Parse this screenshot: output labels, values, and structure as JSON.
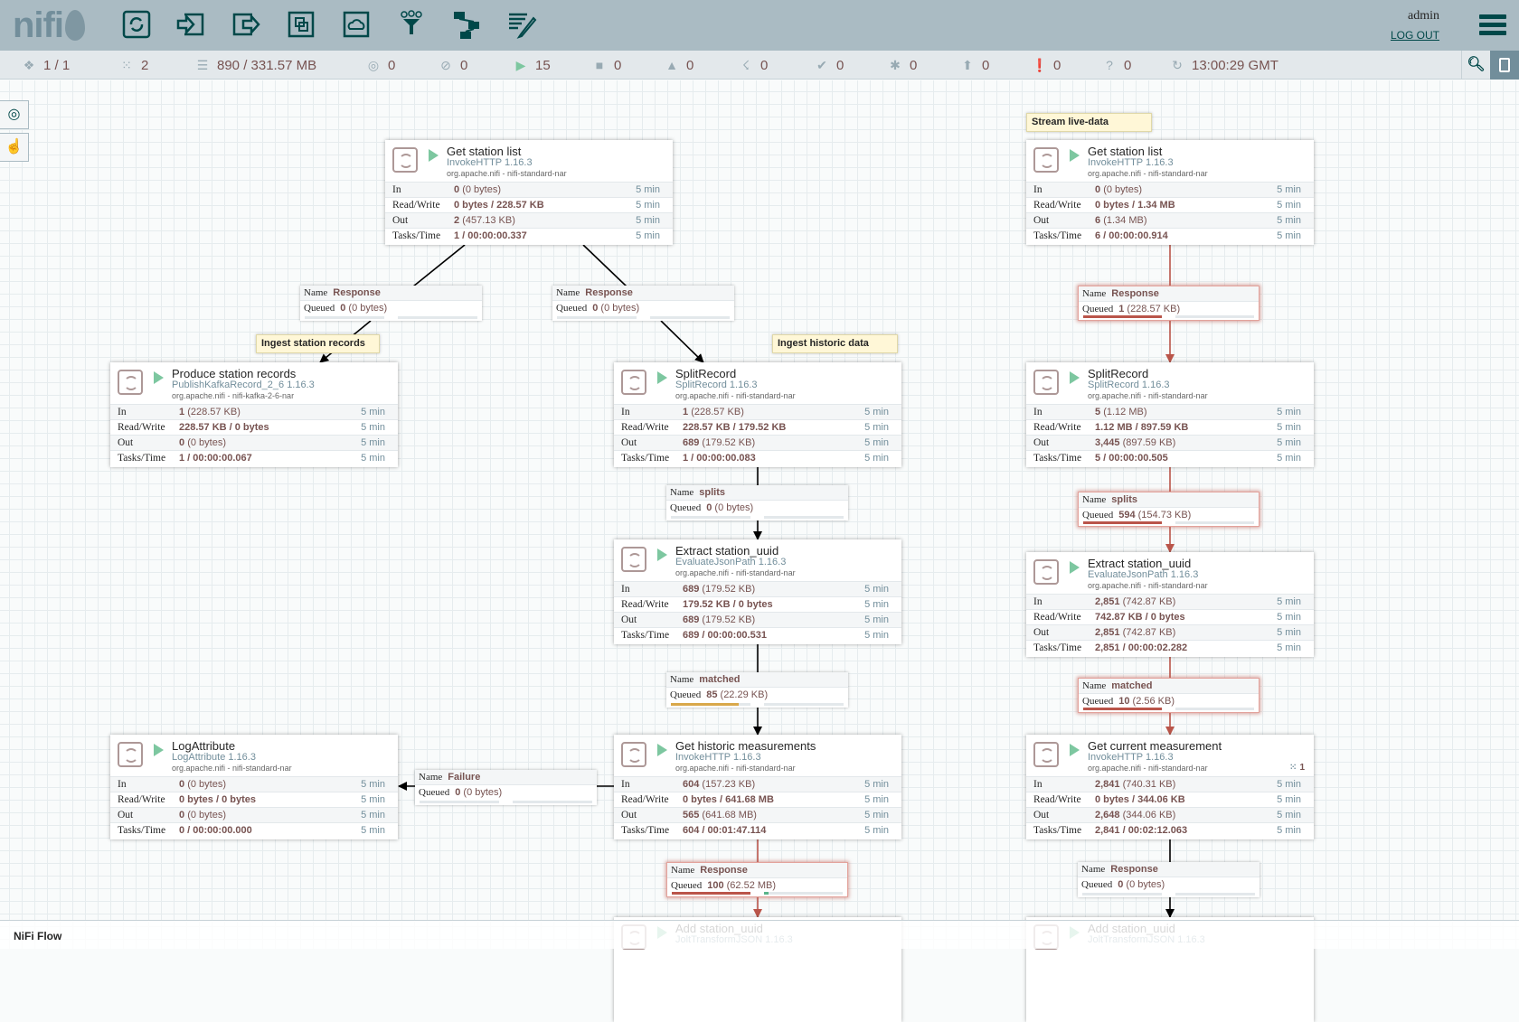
{
  "header": {
    "logo": "nifi",
    "toolbar": [
      "processor-icon",
      "input-port-icon",
      "output-port-icon",
      "process-group-icon",
      "remote-process-group-icon",
      "funnel-icon",
      "template-icon",
      "label-icon"
    ],
    "user": "admin",
    "logout_label": "LOG OUT"
  },
  "status": {
    "cluster": "1 / 1",
    "threads": "2",
    "queued": "890 / 331.57 MB",
    "transmitting": "0",
    "not_transmitting": "0",
    "running": "15",
    "stopped": "0",
    "invalid": "0",
    "disabled": "0",
    "up_to_date": "0",
    "locally_modified": "0",
    "stale": "0",
    "errors": "0",
    "sync_failure": "0",
    "last_refresh": "13:00:29 GMT"
  },
  "row_labels": {
    "in": "In",
    "rw": "Read/Write",
    "out": "Out",
    "tasks": "Tasks/Time"
  },
  "conn_labels": {
    "name": "Name",
    "queued": "Queued"
  },
  "processors": [
    {
      "name": "Get station list",
      "type": "InvokeHTTP 1.16.3",
      "bundle": "org.apache.nifi - nifi-standard-nar",
      "in": [
        "0",
        "(0 bytes)"
      ],
      "rw": "0 bytes / 228.57 KB",
      "out": [
        "2",
        "(457.13 KB)"
      ],
      "tasks": "1 / 00:00:00.337",
      "window": "5 min",
      "state": "running"
    },
    {
      "name": "Produce station records",
      "type": "PublishKafkaRecord_2_6 1.16.3",
      "bundle": "org.apache.nifi - nifi-kafka-2-6-nar",
      "in": [
        "1",
        "(228.57 KB)"
      ],
      "rw": "228.57 KB / 0 bytes",
      "out": [
        "0",
        "(0 bytes)"
      ],
      "tasks": "1 / 00:00:00.067",
      "window": "5 min",
      "state": "running"
    },
    {
      "name": "SplitRecord",
      "type": "SplitRecord 1.16.3",
      "bundle": "org.apache.nifi - nifi-standard-nar",
      "in": [
        "1",
        "(228.57 KB)"
      ],
      "rw": "228.57 KB / 179.52 KB",
      "out": [
        "689",
        "(179.52 KB)"
      ],
      "tasks": "1 / 00:00:00.083",
      "window": "5 min",
      "state": "running"
    },
    {
      "name": "Extract station_uuid",
      "type": "EvaluateJsonPath 1.16.3",
      "bundle": "org.apache.nifi - nifi-standard-nar",
      "in": [
        "689",
        "(179.52 KB)"
      ],
      "rw": "179.52 KB / 0 bytes",
      "out": [
        "689",
        "(179.52 KB)"
      ],
      "tasks": "689 / 00:00:00.531",
      "window": "5 min",
      "state": "running"
    },
    {
      "name": "LogAttribute",
      "type": "LogAttribute 1.16.3",
      "bundle": "org.apache.nifi - nifi-standard-nar",
      "in": [
        "0",
        "(0 bytes)"
      ],
      "rw": "0 bytes / 0 bytes",
      "out": [
        "0",
        "(0 bytes)"
      ],
      "tasks": "0 / 00:00:00.000",
      "window": "5 min",
      "state": "running"
    },
    {
      "name": "Get historic measurements",
      "type": "InvokeHTTP 1.16.3",
      "bundle": "org.apache.nifi - nifi-standard-nar",
      "in": [
        "604",
        "(157.23 KB)"
      ],
      "rw": "0 bytes / 641.68 MB",
      "out": [
        "565",
        "(641.68 MB)"
      ],
      "tasks": "604 / 00:01:47.114",
      "window": "5 min",
      "state": "running"
    },
    {
      "name": "Add station_uuid",
      "type": "JoltTransformJSON 1.16.3",
      "state": "running"
    },
    {
      "name": "Get station list",
      "type": "InvokeHTTP 1.16.3",
      "bundle": "org.apache.nifi - nifi-standard-nar",
      "in": [
        "0",
        "(0 bytes)"
      ],
      "rw": "0 bytes / 1.34 MB",
      "out": [
        "6",
        "(1.34 MB)"
      ],
      "tasks": "6 / 00:00:00.914",
      "window": "5 min",
      "state": "running"
    },
    {
      "name": "SplitRecord",
      "type": "SplitRecord 1.16.3",
      "bundle": "org.apache.nifi - nifi-standard-nar",
      "in": [
        "5",
        "(1.12 MB)"
      ],
      "rw": "1.12 MB / 897.59 KB",
      "out": [
        "3,445",
        "(897.59 KB)"
      ],
      "tasks": "5 / 00:00:00.505",
      "window": "5 min",
      "state": "running"
    },
    {
      "name": "Extract station_uuid",
      "type": "EvaluateJsonPath 1.16.3",
      "bundle": "org.apache.nifi - nifi-standard-nar",
      "in": [
        "2,851",
        "(742.87 KB)"
      ],
      "rw": "742.87 KB / 0 bytes",
      "out": [
        "2,851",
        "(742.87 KB)"
      ],
      "tasks": "2,851 / 00:00:02.282",
      "window": "5 min",
      "state": "running"
    },
    {
      "name": "Get current measurement",
      "type": "InvokeHTTP 1.16.3",
      "bundle": "org.apache.nifi - nifi-standard-nar",
      "in": [
        "2,841",
        "(740.31 KB)"
      ],
      "rw": "0 bytes / 344.06 KB",
      "out": [
        "2,648",
        "(344.06 KB)"
      ],
      "tasks": "2,841 / 00:02:12.063",
      "window": "5 min",
      "active_threads": "1",
      "state": "running"
    },
    {
      "name": "Add station_uuid",
      "type": "JoltTransformJSON 1.16.3",
      "state": "running"
    }
  ],
  "connections": [
    {
      "name": "Response",
      "count": "0",
      "size": "(0 bytes)",
      "count_fill": 0,
      "size_fill": 0,
      "status": "ok"
    },
    {
      "name": "Response",
      "count": "0",
      "size": "(0 bytes)",
      "count_fill": 0,
      "size_fill": 0,
      "status": "ok"
    },
    {
      "name": "splits",
      "count": "0",
      "size": "(0 bytes)",
      "count_fill": 0,
      "size_fill": 0,
      "status": "ok"
    },
    {
      "name": "matched",
      "count": "85",
      "size": "(22.29 KB)",
      "count_fill": 0.85,
      "size_fill": 0,
      "status": "warn"
    },
    {
      "name": "Failure",
      "count": "0",
      "size": "(0 bytes)",
      "count_fill": 0,
      "size_fill": 0,
      "status": "ok"
    },
    {
      "name": "Response",
      "count": "100",
      "size": "(62.52 MB)",
      "count_fill": 1,
      "size_fill": 0.06,
      "status": "full"
    },
    {
      "name": "Response",
      "count": "1",
      "size": "(228.57 KB)",
      "count_fill": 1,
      "size_fill": 0,
      "status": "full"
    },
    {
      "name": "splits",
      "count": "594",
      "size": "(154.73 KB)",
      "count_fill": 1,
      "size_fill": 0,
      "status": "full"
    },
    {
      "name": "matched",
      "count": "10",
      "size": "(2.56 KB)",
      "count_fill": 1,
      "size_fill": 0,
      "status": "full"
    },
    {
      "name": "Response",
      "count": "0",
      "size": "(0 bytes)",
      "count_fill": 0,
      "size_fill": 0,
      "status": "ok"
    }
  ],
  "labels": [
    "Stream live-data",
    "Ingest station records",
    "Ingest historic data"
  ],
  "colors": {
    "full": "#ba554a",
    "warn": "#d9a84a",
    "ok_size": "#5ab48a",
    "accent": "#004849",
    "value": "#775351"
  },
  "breadcrumb": "NiFi Flow"
}
